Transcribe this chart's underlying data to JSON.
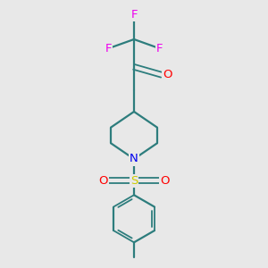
{
  "bg_color": "#e8e8e8",
  "bond_color": "#2d7d7d",
  "F_color": "#ee00ee",
  "O_color": "#ff0000",
  "N_color": "#0000ee",
  "S_color": "#cccc00",
  "lw": 1.6,
  "lw_dbl": 1.3,
  "fs": 9.5,
  "figsize": [
    3.0,
    3.0
  ],
  "dpi": 100,
  "xlim": [
    0,
    10
  ],
  "ylim": [
    0,
    10
  ]
}
